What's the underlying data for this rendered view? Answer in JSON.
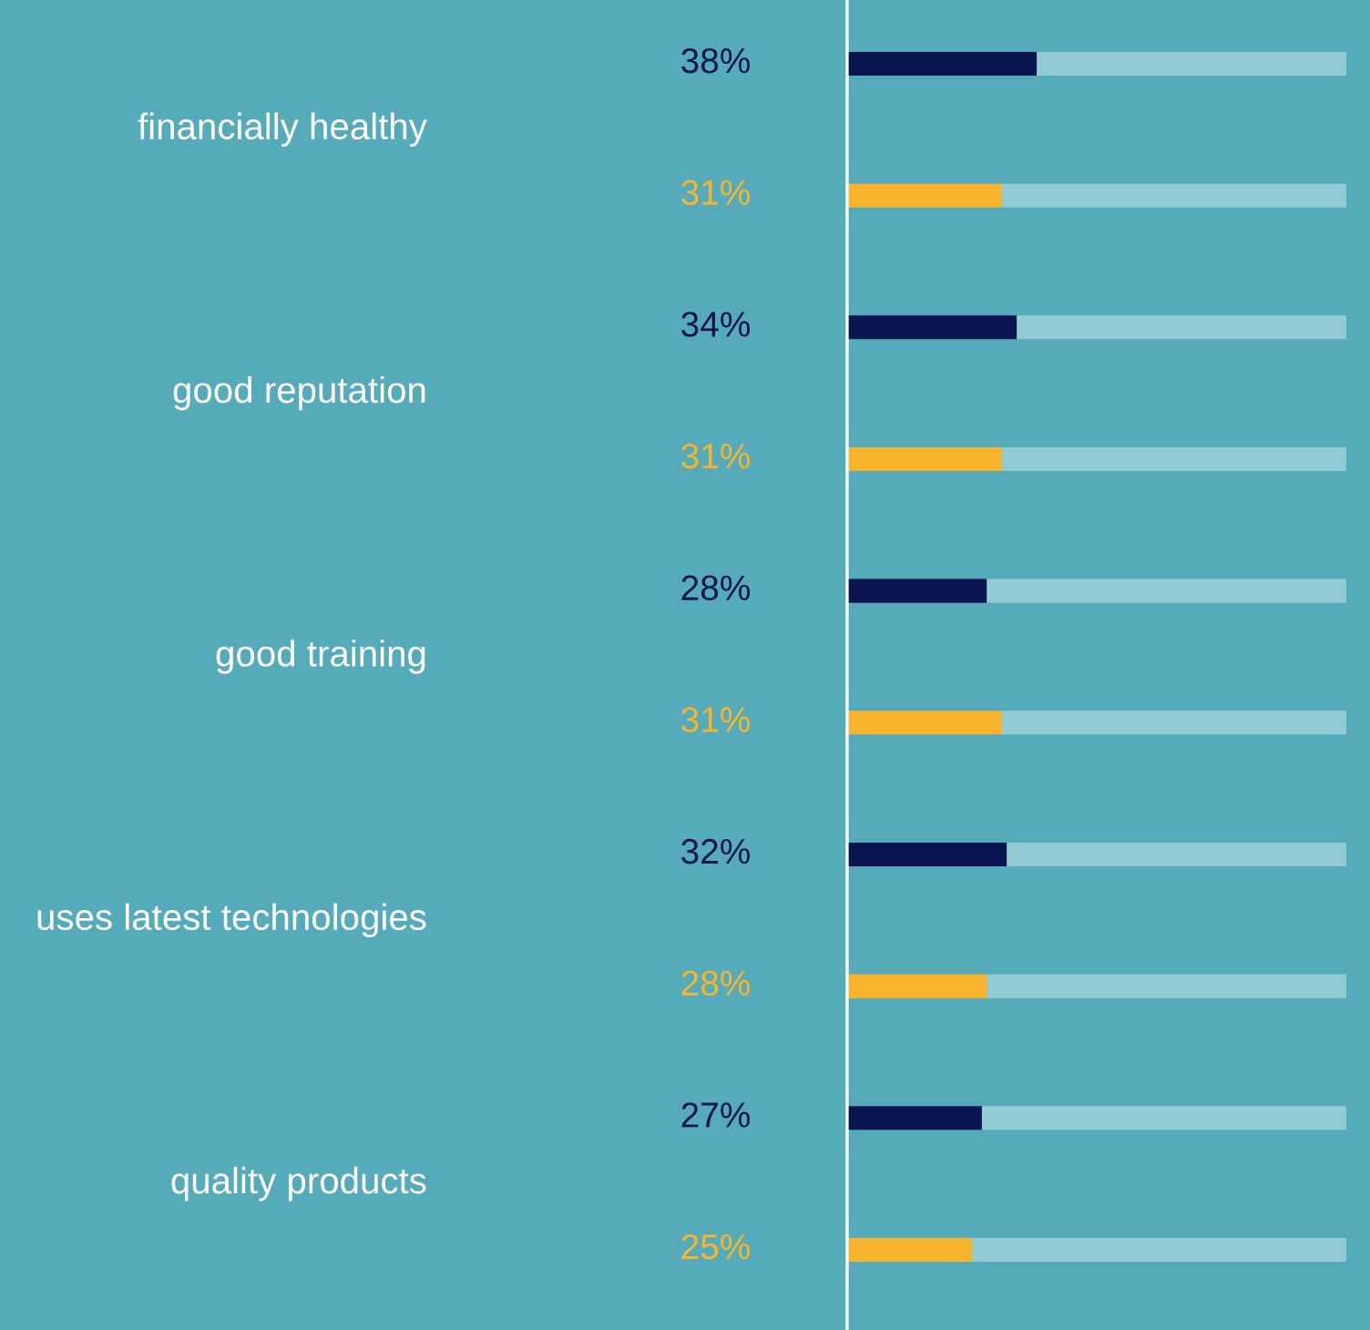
{
  "chart_data": {
    "type": "bar",
    "orientation": "horizontal",
    "stacked": true,
    "categories": [
      "financially healthy",
      null,
      "good reputation",
      null,
      "good training",
      null,
      "uses latest technologies",
      null,
      "quality products",
      null
    ],
    "xlim": [
      0,
      100
    ],
    "tick_labels": false,
    "series": [
      {
        "color": "#0b1650",
        "values": [
          38,
          null,
          34,
          null,
          28,
          null,
          32,
          null,
          27,
          null
        ],
        "value_labels": [
          "38%",
          null,
          "34%",
          null,
          "28%",
          null,
          "32%",
          null,
          "27%",
          null
        ]
      },
      {
        "color": "#f9b42d",
        "values": [
          null,
          31,
          null,
          31,
          null,
          31,
          null,
          28,
          null,
          25
        ],
        "value_labels": [
          null,
          "31%",
          null,
          "31%",
          null,
          "31%",
          null,
          "28%",
          null,
          "25%"
        ]
      },
      {
        "color": "#93cbd5",
        "values": [
          62,
          69,
          66,
          69,
          72,
          69,
          68,
          72,
          73,
          75
        ]
      }
    ]
  }
}
